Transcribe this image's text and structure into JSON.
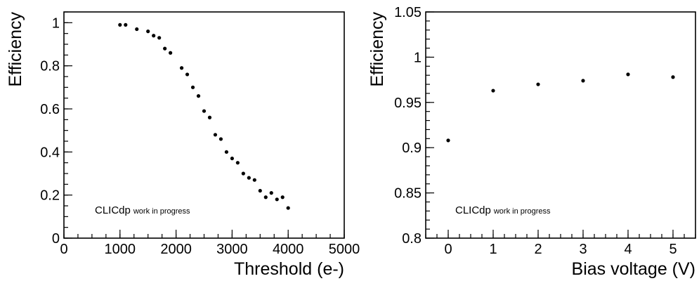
{
  "chart_data": [
    {
      "type": "scatter",
      "xlabel": "Threshold (e-)",
      "ylabel": "Efficiency",
      "xlim": [
        0,
        5000
      ],
      "ylim": [
        0,
        1.05
      ],
      "xticks": [
        "0",
        "1000",
        "2000",
        "3000",
        "4000",
        "5000"
      ],
      "xtick_values": [
        0,
        1000,
        2000,
        3000,
        4000,
        5000
      ],
      "yticks": [
        "0",
        "0.2",
        "0.4",
        "0.6",
        "0.8",
        "1"
      ],
      "ytick_values": [
        0,
        0.2,
        0.4,
        0.6,
        0.8,
        1.0
      ],
      "x_minor_step": 250,
      "y_minor_step": 0.05,
      "annotation_main": "CLICdp",
      "annotation_sub": "work in progress",
      "grid": false,
      "x": [
        1000,
        1100,
        1300,
        1500,
        1600,
        1700,
        1800,
        1900,
        2100,
        2200,
        2300,
        2400,
        2500,
        2600,
        2700,
        2800,
        2900,
        3000,
        3100,
        3200,
        3300,
        3400,
        3500,
        3600,
        3700,
        3800,
        3900,
        4000
      ],
      "y": [
        0.99,
        0.99,
        0.97,
        0.96,
        0.94,
        0.93,
        0.88,
        0.86,
        0.79,
        0.76,
        0.7,
        0.66,
        0.59,
        0.56,
        0.48,
        0.46,
        0.4,
        0.37,
        0.35,
        0.3,
        0.28,
        0.27,
        0.22,
        0.19,
        0.21,
        0.18,
        0.19,
        0.14
      ]
    },
    {
      "type": "scatter",
      "xlabel": "Bias voltage (V)",
      "ylabel": "Efficiency",
      "xlim": [
        -0.5,
        5.5
      ],
      "ylim": [
        0.8,
        1.05
      ],
      "xticks": [
        "0",
        "1",
        "2",
        "3",
        "4",
        "5"
      ],
      "xtick_values": [
        0,
        1,
        2,
        3,
        4,
        5
      ],
      "yticks": [
        "0.8",
        "0.85",
        "0.9",
        "0.95",
        "1",
        "1.05"
      ],
      "ytick_values": [
        0.8,
        0.85,
        0.9,
        0.95,
        1.0,
        1.05
      ],
      "x_minor_step": 0.25,
      "y_minor_step": 0.01,
      "annotation_main": "CLICdp",
      "annotation_sub": "work in progress",
      "grid": false,
      "x": [
        0,
        1,
        2,
        3,
        4,
        5
      ],
      "y": [
        0.908,
        0.963,
        0.97,
        0.974,
        0.981,
        0.978
      ]
    }
  ]
}
